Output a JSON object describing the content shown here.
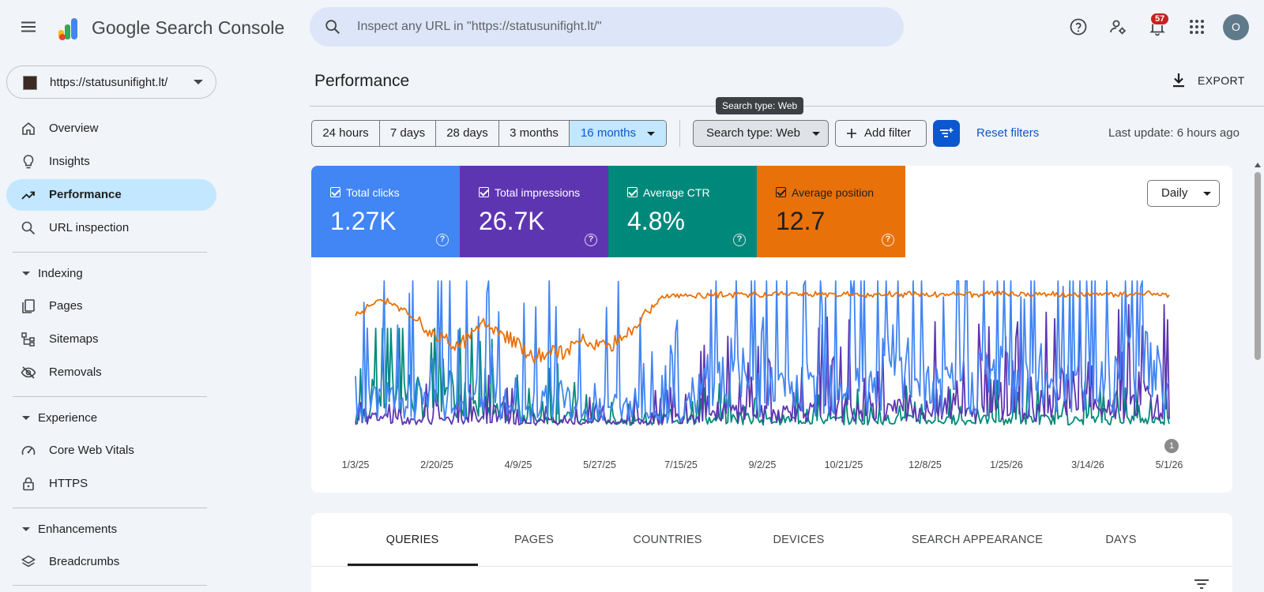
{
  "app": {
    "brand": "Google Search Console"
  },
  "topbar": {
    "search_placeholder": "Inspect any URL in \"https://statusunifight.lt/\"",
    "notification_count": "57",
    "avatar_initial": "O"
  },
  "sidebar": {
    "property": "https://statusunifight.lt/",
    "items_top": [
      {
        "label": "Overview",
        "icon": "home-icon"
      },
      {
        "label": "Insights",
        "icon": "lightbulb-icon"
      },
      {
        "label": "Performance",
        "icon": "trending-up-icon",
        "active": true
      },
      {
        "label": "URL inspection",
        "icon": "search-icon"
      }
    ],
    "sections": [
      {
        "label": "Indexing",
        "items": [
          "Pages",
          "Sitemaps",
          "Removals"
        ]
      },
      {
        "label": "Experience",
        "items": [
          "Core Web Vitals",
          "HTTPS"
        ]
      },
      {
        "label": "Enhancements",
        "items": [
          "Breadcrumbs"
        ]
      }
    ]
  },
  "header": {
    "title": "Performance",
    "export_label": "EXPORT",
    "tooltip": "Search type: Web"
  },
  "filters": {
    "ranges": [
      "24 hours",
      "7 days",
      "28 days",
      "3 months",
      "16 months"
    ],
    "selected_range": "16 months",
    "search_type": "Search type: Web",
    "add_filter": "Add filter",
    "reset": "Reset filters",
    "last_update": "Last update: 6 hours ago"
  },
  "metrics": [
    {
      "label": "Total clicks",
      "value": "1.27K",
      "color": "#4285f4",
      "checked": true
    },
    {
      "label": "Total impressions",
      "value": "26.7K",
      "color": "#5e35b1",
      "checked": true
    },
    {
      "label": "Average CTR",
      "value": "4.8%",
      "color": "#00897b",
      "checked": true
    },
    {
      "label": "Average position",
      "value": "12.7",
      "color": "#e8710a",
      "checked": true
    }
  ],
  "granularity": "Daily",
  "annotation_badge": "1",
  "chart_data": {
    "type": "line",
    "x_ticks": [
      "1/3/25",
      "2/20/25",
      "4/9/25",
      "5/27/25",
      "7/15/25",
      "9/2/25",
      "10/21/25",
      "12/8/25",
      "1/25/26",
      "3/14/26",
      "5/1/26"
    ],
    "x_range": [
      "2025-01-03",
      "2026-05-01"
    ],
    "grid": false,
    "series": [
      {
        "name": "Average position",
        "color": "#e8710a",
        "values_by_period": [
          35,
          18,
          30,
          55,
          70,
          45,
          60,
          80,
          75,
          62,
          70,
          48,
          15,
          14,
          13,
          12,
          12,
          12,
          12,
          12,
          12,
          12,
          12,
          12,
          12,
          12,
          12,
          12,
          12,
          12,
          12,
          11,
          12
        ]
      },
      {
        "name": "Total clicks",
        "color": "#4285f4",
        "values_by_period": [
          3,
          10,
          4,
          12,
          5,
          9,
          6,
          4,
          10,
          3,
          6,
          5,
          2,
          5,
          10,
          14,
          12,
          9,
          11,
          15,
          10,
          18,
          14,
          9,
          13,
          16,
          12,
          14,
          15,
          10,
          18,
          20,
          9
        ]
      },
      {
        "name": "Total impressions",
        "color": "#5e35b1",
        "values_by_period": [
          20,
          60,
          30,
          40,
          25,
          45,
          35,
          22,
          30,
          20,
          30,
          25,
          30,
          60,
          80,
          90,
          70,
          85,
          80,
          95,
          75,
          100,
          90,
          80,
          70,
          95,
          85,
          100,
          250,
          90,
          110,
          120,
          95
        ]
      },
      {
        "name": "Average CTR",
        "color": "#00897b",
        "values_by_period": [
          5,
          60,
          70,
          40,
          55,
          20,
          30,
          15,
          20,
          10,
          12,
          8,
          6,
          10,
          12,
          14,
          10,
          13,
          11,
          12,
          10,
          14,
          12,
          11,
          10,
          13,
          12,
          14,
          11,
          12,
          13,
          12,
          14
        ]
      }
    ]
  },
  "tabs": [
    "QUERIES",
    "PAGES",
    "COUNTRIES",
    "DEVICES",
    "SEARCH APPEARANCE",
    "DAYS"
  ],
  "active_tab": "QUERIES"
}
